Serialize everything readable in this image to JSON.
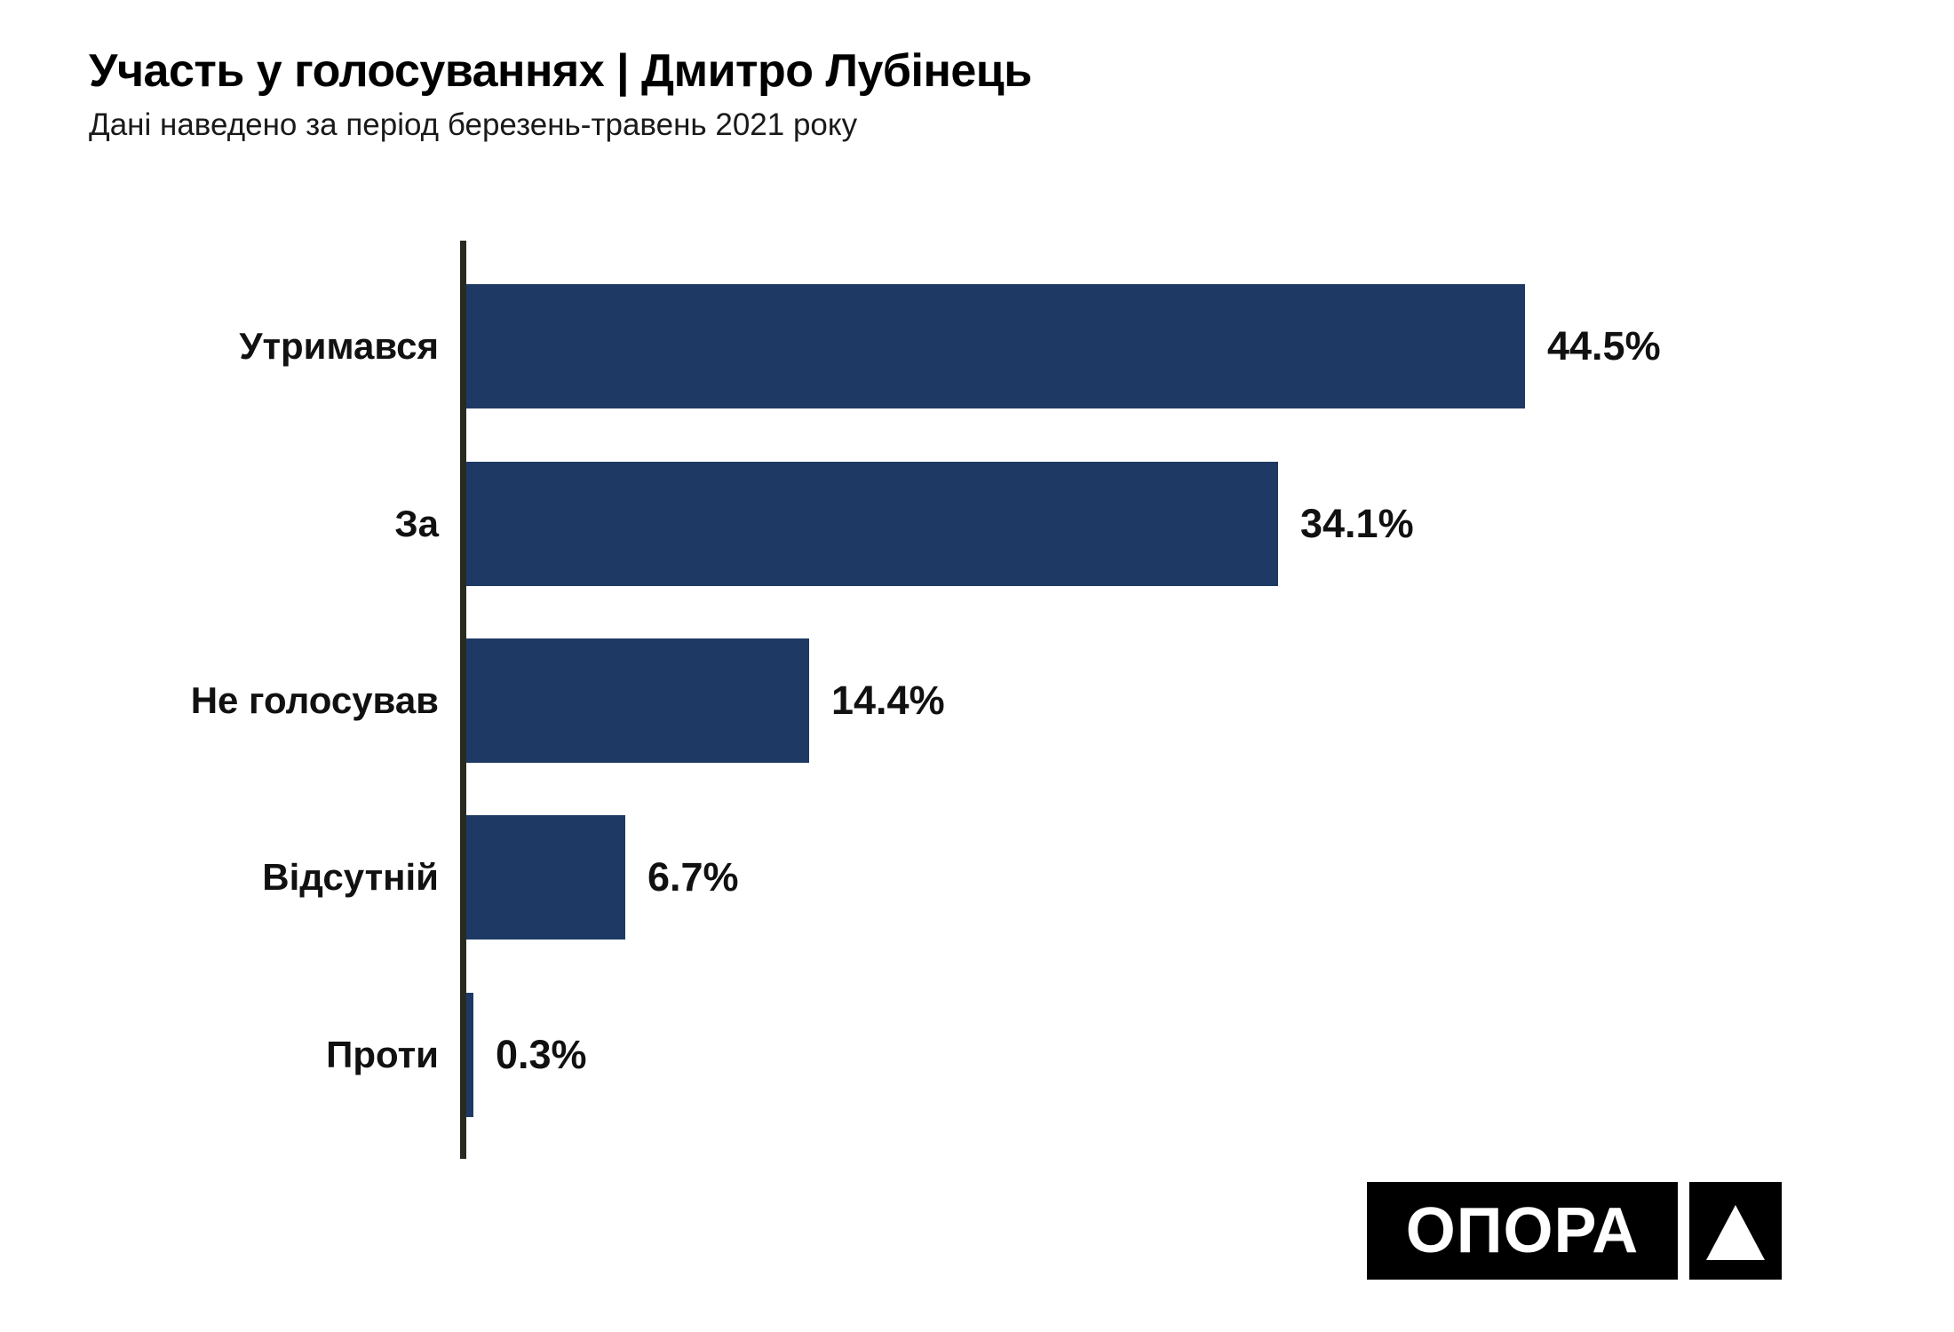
{
  "header": {
    "title": "Участь у голосуваннях | Дмитро Лубінець",
    "subtitle": "Дані наведено за період березень-травень 2021 року"
  },
  "chart_data": {
    "type": "bar",
    "orientation": "horizontal",
    "title": "Участь у голосуваннях | Дмитро Лубінець",
    "subtitle": "Дані наведено за період березень-травень 2021 року",
    "categories": [
      "Утримався",
      "За",
      "Не голосував",
      "Відсутній",
      "Проти"
    ],
    "values": [
      44.5,
      34.1,
      14.4,
      6.7,
      0.3
    ],
    "value_labels": [
      "44.5%",
      "34.1%",
      "14.4%",
      "6.7%",
      "0.3%"
    ],
    "xlabel": "",
    "ylabel": "",
    "xlim": [
      0,
      47
    ],
    "grid": false,
    "legend": false,
    "bar_color": "#1e3a64",
    "axis_color": "#272b20",
    "label_color": "#111111"
  },
  "logo": {
    "text": "ОПОРА",
    "icon": "triangle-up-icon",
    "bg_color": "#000000",
    "fg_color": "#ffffff"
  }
}
